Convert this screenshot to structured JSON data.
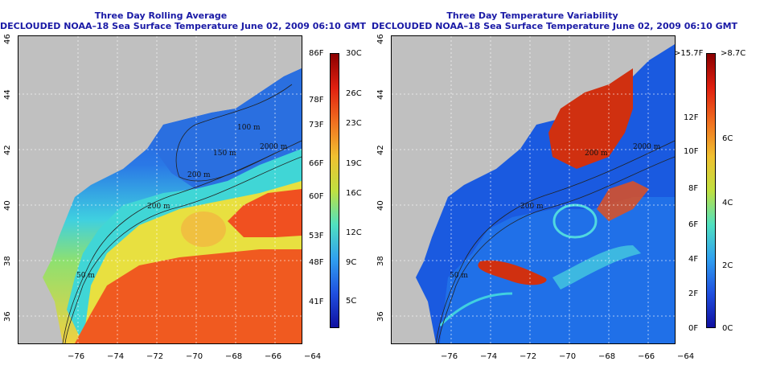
{
  "left_panel": {
    "title": "Three Day Rolling Average",
    "subtitle": "DECLOUDED NOAA–18 Sea Surface Temperature June 02, 2009 06:10 GMT",
    "colorbar_f": [
      "86F",
      "78F",
      "73F",
      "66F",
      "60F",
      "53F",
      "48F",
      "41F"
    ],
    "colorbar_c": [
      "30C",
      "26C",
      "23C",
      "19C",
      "16C",
      "12C",
      "9C",
      "5C"
    ],
    "contour_labels": [
      "100 m",
      "200 m",
      "50 m",
      "2000 m",
      "150 m",
      "200 m"
    ]
  },
  "right_panel": {
    "title": "Three Day Temperature Variability",
    "subtitle": "DECLOUDED NOAA–18 Sea Surface Temperature June 02, 2009 06:10 GMT",
    "colorbar_f": [
      ">15.7F",
      "12F",
      "10F",
      "8F",
      "6F",
      "4F",
      "2F",
      "0F"
    ],
    "colorbar_c": [
      ">8.7C",
      "6C",
      "4C",
      "2C",
      "0C"
    ],
    "contour_labels": [
      "200 m",
      "2000 m",
      "200 m",
      "50 m"
    ]
  },
  "axes": {
    "x_ticks": [
      "−76",
      "−74",
      "−72",
      "−70",
      "−68",
      "−66",
      "−64"
    ],
    "y_ticks": [
      "36",
      "38",
      "40",
      "42",
      "44",
      "46"
    ]
  },
  "colors": {
    "title": "#1a1aa6",
    "land": "#c0c0c0",
    "sst_cold": "#1f4fd6",
    "sst_mid": "#36d0e8",
    "sst_warm": "#f5d040",
    "sst_hot": "#f05020"
  }
}
